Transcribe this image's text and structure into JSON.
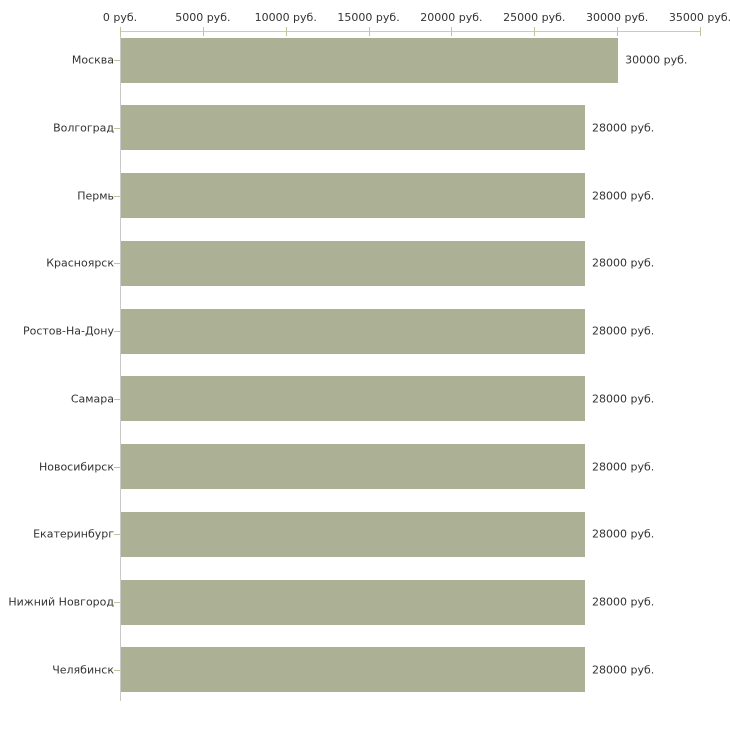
{
  "chart_data": {
    "type": "bar",
    "orientation": "horizontal",
    "title": "",
    "xlabel": "",
    "ylabel": "",
    "unit": "руб.",
    "categories": [
      "Москва",
      "Волгоград",
      "Пермь",
      "Красноярск",
      "Ростов-На-Дону",
      "Самара",
      "Новосибирск",
      "Екатеринбург",
      "Нижний Новгород",
      "Челябинск"
    ],
    "values": [
      30000,
      28000,
      28000,
      28000,
      28000,
      28000,
      28000,
      28000,
      28000,
      28000
    ],
    "value_labels": [
      "30000 руб.",
      "28000 руб.",
      "28000 руб.",
      "28000 руб.",
      "28000 руб.",
      "28000 руб.",
      "28000 руб.",
      "28000 руб.",
      "28000 руб.",
      "28000 руб."
    ],
    "xlim": [
      0,
      35000
    ],
    "x_ticks": [
      0,
      5000,
      10000,
      15000,
      20000,
      25000,
      30000,
      35000
    ],
    "x_tick_labels": [
      "0 руб.",
      "5000 руб.",
      "10000 руб.",
      "15000 руб.",
      "20000 руб.",
      "25000 руб.",
      "30000 руб.",
      "35000 руб."
    ],
    "grid": false,
    "legend_position": "none",
    "colors": {
      "bar": "#acb196",
      "axis": "#c9c9c9",
      "tick": "#c5c199",
      "text": "#333333",
      "background": "#ffffff"
    }
  }
}
